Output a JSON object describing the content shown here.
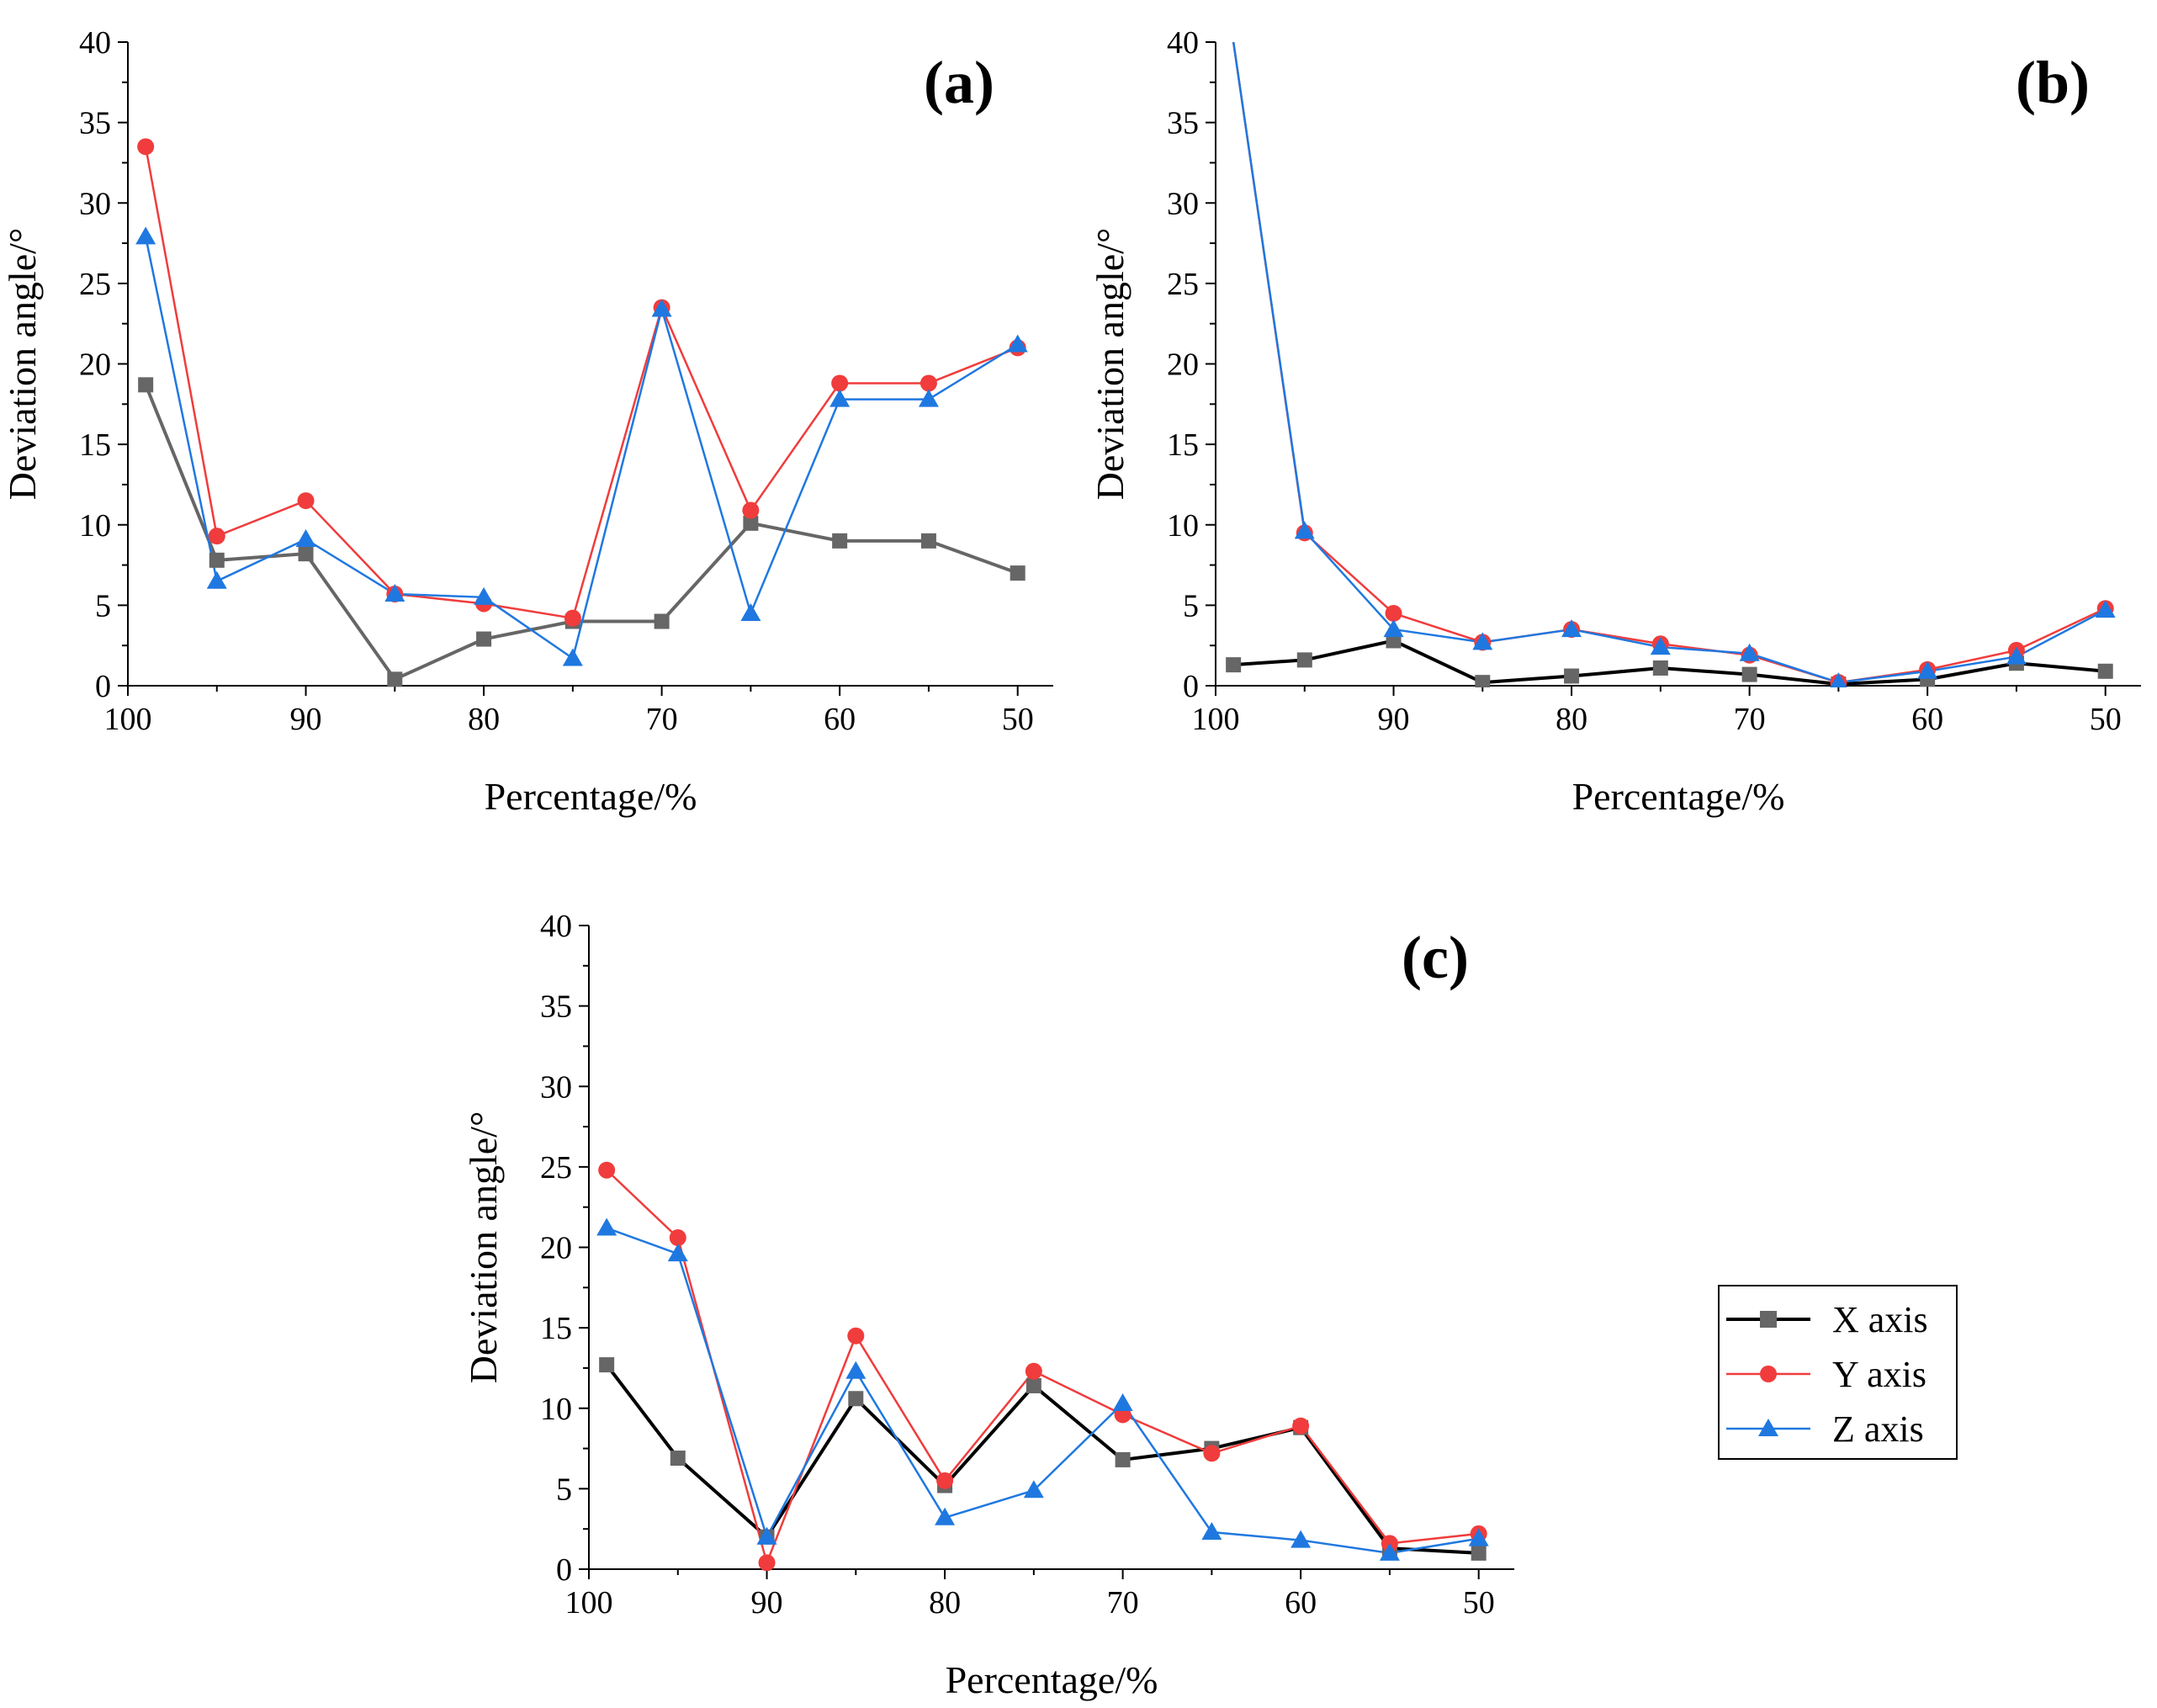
{
  "figure": {
    "series_styles": [
      {
        "key": "x",
        "marker": "square",
        "marker_color": "#666666",
        "line_color": "#000000"
      },
      {
        "key": "y",
        "marker": "circle",
        "marker_color": "#f03c3c",
        "line_color": "#f03c3c"
      },
      {
        "key": "z",
        "marker": "triangle",
        "marker_color": "#1f78e0",
        "line_color": "#1f78e0"
      }
    ],
    "legend": {
      "placement": "right of panel (c)",
      "entries": [
        "X axis",
        "Y axis",
        "Z axis"
      ]
    }
  },
  "chart_data": [
    {
      "id": "a",
      "type": "line",
      "panel_label": "(a)",
      "xlabel": "Percentage/%",
      "ylabel": "Deviation angle/°",
      "xlim": [
        100,
        48
      ],
      "ylim": [
        0,
        40
      ],
      "xticks": [
        100,
        90,
        80,
        70,
        60,
        50
      ],
      "yticks": [
        0,
        5,
        10,
        15,
        20,
        25,
        30,
        35,
        40
      ],
      "x": [
        99,
        95,
        90,
        85,
        80,
        75,
        70,
        65,
        60,
        55,
        50
      ],
      "series": [
        {
          "name": "X axis",
          "key": "x",
          "line_color": "#666666",
          "values": [
            18.7,
            7.8,
            8.2,
            0.4,
            2.9,
            4.0,
            4.0,
            10.1,
            9.0,
            9.0,
            7.0
          ]
        },
        {
          "name": "Y axis",
          "key": "y",
          "values": [
            33.5,
            9.3,
            11.5,
            5.7,
            5.1,
            4.2,
            23.5,
            10.9,
            18.8,
            18.8,
            21.0
          ]
        },
        {
          "name": "Z axis",
          "key": "z",
          "values": [
            27.9,
            6.5,
            9.1,
            5.7,
            5.5,
            1.7,
            23.4,
            4.5,
            17.8,
            17.8,
            21.2
          ]
        }
      ]
    },
    {
      "id": "b",
      "type": "line",
      "panel_label": "(b)",
      "xlabel": "Percentage/%",
      "ylabel": "Deviation angle/°",
      "xlim": [
        100,
        48
      ],
      "ylim": [
        0,
        40
      ],
      "xticks": [
        100,
        90,
        80,
        70,
        60,
        50
      ],
      "yticks": [
        0,
        5,
        10,
        15,
        20,
        25,
        30,
        35,
        40
      ],
      "x": [
        99,
        95,
        90,
        85,
        80,
        75,
        70,
        65,
        60,
        55,
        50
      ],
      "series": [
        {
          "name": "X axis",
          "key": "x",
          "values": [
            1.3,
            1.6,
            2.8,
            0.2,
            0.6,
            1.1,
            0.7,
            0.1,
            0.4,
            1.4,
            0.9
          ]
        },
        {
          "name": "Y axis",
          "key": "y",
          "values": [
            40.0,
            9.5,
            4.5,
            2.7,
            3.5,
            2.6,
            1.9,
            0.2,
            1.0,
            2.2,
            4.8
          ]
        },
        {
          "name": "Z axis",
          "key": "z",
          "values": [
            40.0,
            9.6,
            3.5,
            2.7,
            3.5,
            2.4,
            2.0,
            0.2,
            0.9,
            1.8,
            4.7
          ]
        }
      ]
    },
    {
      "id": "c",
      "type": "line",
      "panel_label": "(c)",
      "xlabel": "Percentage/%",
      "ylabel": "Deviation angle/°",
      "xlim": [
        100,
        48
      ],
      "ylim": [
        0,
        40
      ],
      "xticks": [
        100,
        90,
        80,
        70,
        60,
        50
      ],
      "yticks": [
        0,
        5,
        10,
        15,
        20,
        25,
        30,
        35,
        40
      ],
      "x": [
        99,
        95,
        90,
        85,
        80,
        75,
        70,
        65,
        60,
        55,
        50
      ],
      "series": [
        {
          "name": "X axis",
          "key": "x",
          "values": [
            12.7,
            6.9,
            2.0,
            10.6,
            5.2,
            11.4,
            6.8,
            7.5,
            8.8,
            1.3,
            1.0
          ]
        },
        {
          "name": "Y axis",
          "key": "y",
          "values": [
            24.8,
            20.6,
            0.4,
            14.5,
            5.5,
            12.3,
            9.6,
            7.2,
            8.9,
            1.6,
            2.2
          ]
        },
        {
          "name": "Z axis",
          "key": "z",
          "values": [
            21.2,
            19.6,
            2.0,
            12.3,
            3.2,
            4.9,
            10.3,
            2.3,
            1.8,
            1.0,
            1.9
          ]
        }
      ]
    }
  ]
}
